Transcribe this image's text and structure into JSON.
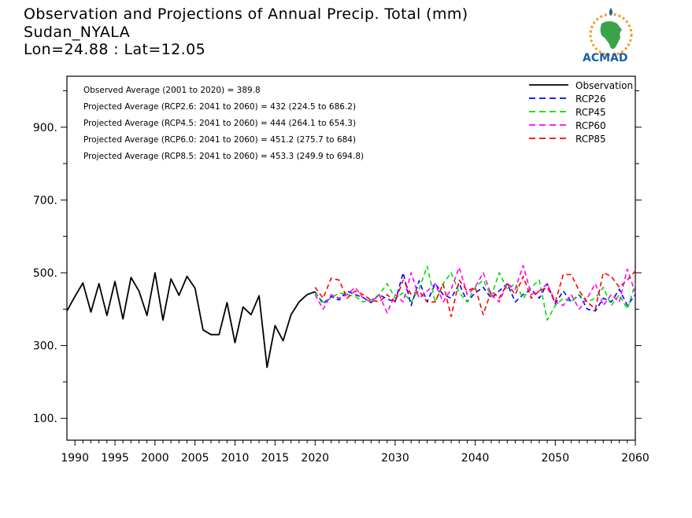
{
  "header": {
    "title": "Observation and Projections of Annual Precip. Total (mm)",
    "location": "Sudan_NYALA",
    "coords": "Lon=24.88 : Lat=12.05"
  },
  "logo": {
    "text": "ACMAD",
    "colors": {
      "blue": "#1a5fa8",
      "green": "#3aa34a",
      "orange": "#f0a020"
    }
  },
  "annotations": [
    "Observed Average (2001 to 2020) = 389.8",
    "Projected Average (RCP2.6: 2041 to 2060) = 432 (224.5 to 686.2)",
    "Projected Average (RCP4.5: 2041 to 2060) = 444 (264.1 to 654.3)",
    "Projected Average (RCP6.0: 2041 to 2060) = 451.2 (275.7 to 684)",
    "Projected Average (RCP8.5: 2041 to 2060) = 453.3 (249.9 to 694.8)"
  ],
  "chart_data": {
    "type": "line",
    "xlim": [
      1989,
      2060
    ],
    "ylim": [
      40,
      1040
    ],
    "x_ticks": [
      1990,
      1995,
      2000,
      2005,
      2010,
      2015,
      2020,
      2030,
      2040,
      2050,
      2060
    ],
    "y_ticks": [
      100,
      300,
      500,
      700,
      900
    ],
    "y_tick_labels": [
      "100.",
      "300.",
      "500.",
      "700.",
      "900."
    ],
    "y_minor": [
      200,
      400,
      600,
      800,
      1000
    ],
    "legend_position": "top-right",
    "series": [
      {
        "name": "Observation",
        "color": "#000000",
        "dash": "solid",
        "x": [
          1989,
          1990,
          1991,
          1992,
          1993,
          1994,
          1995,
          1996,
          1997,
          1998,
          1999,
          2000,
          2001,
          2002,
          2003,
          2004,
          2005,
          2006,
          2007,
          2008,
          2009,
          2010,
          2011,
          2012,
          2013,
          2014,
          2015,
          2016,
          2017,
          2018,
          2019,
          2020
        ],
        "values": [
          395,
          435,
          472,
          392,
          470,
          383,
          476,
          373,
          487,
          450,
          383,
          500,
          370,
          483,
          438,
          490,
          458,
          343,
          330,
          330,
          418,
          308,
          406,
          385,
          437,
          240,
          355,
          313,
          385,
          420,
          440,
          448
        ]
      },
      {
        "name": "RCP26",
        "color": "#0000ff",
        "dash": "dashed",
        "x_start": 2020,
        "values": [
          448,
          415,
          435,
          425,
          450,
          440,
          432,
          418,
          440,
          428,
          420,
          500,
          410,
          478,
          420,
          470,
          440,
          430,
          470,
          420,
          445,
          460,
          430,
          450,
          470,
          420,
          440,
          455,
          430,
          470,
          415,
          450,
          420,
          440,
          400,
          395,
          430,
          420,
          455,
          410,
          440
        ]
      },
      {
        "name": "RCP45",
        "color": "#00dd00",
        "dash": "dashed",
        "x_start": 2020,
        "values": [
          445,
          420,
          430,
          445,
          440,
          435,
          420,
          425,
          440,
          470,
          430,
          445,
          420,
          455,
          518,
          420,
          470,
          500,
          445,
          420,
          460,
          480,
          435,
          500,
          455,
          470,
          430,
          460,
          480,
          370,
          410,
          430,
          420,
          440,
          420,
          430,
          460,
          410,
          440,
          400,
          470
        ]
      },
      {
        "name": "RCP60",
        "color": "#ff00ff",
        "dash": "dashed",
        "x_start": 2020,
        "values": [
          440,
          400,
          440,
          430,
          440,
          460,
          430,
          420,
          440,
          390,
          440,
          420,
          500,
          430,
          450,
          470,
          420,
          455,
          515,
          440,
          460,
          500,
          440,
          420,
          470,
          455,
          520,
          440,
          450,
          470,
          420,
          410,
          440,
          400,
          430,
          470,
          410,
          440,
          420,
          510,
          445
        ]
      },
      {
        "name": "RCP85",
        "color": "#ff0000",
        "dash": "dashed",
        "x_start": 2020,
        "values": [
          460,
          430,
          485,
          480,
          430,
          450,
          440,
          425,
          420,
          440,
          420,
          480,
          440,
          450,
          420,
          420,
          470,
          380,
          480,
          450,
          460,
          385,
          450,
          430,
          470,
          440,
          490,
          430,
          450,
          460,
          420,
          495,
          495,
          450,
          420,
          400,
          500,
          490,
          460,
          480,
          505
        ]
      }
    ]
  }
}
